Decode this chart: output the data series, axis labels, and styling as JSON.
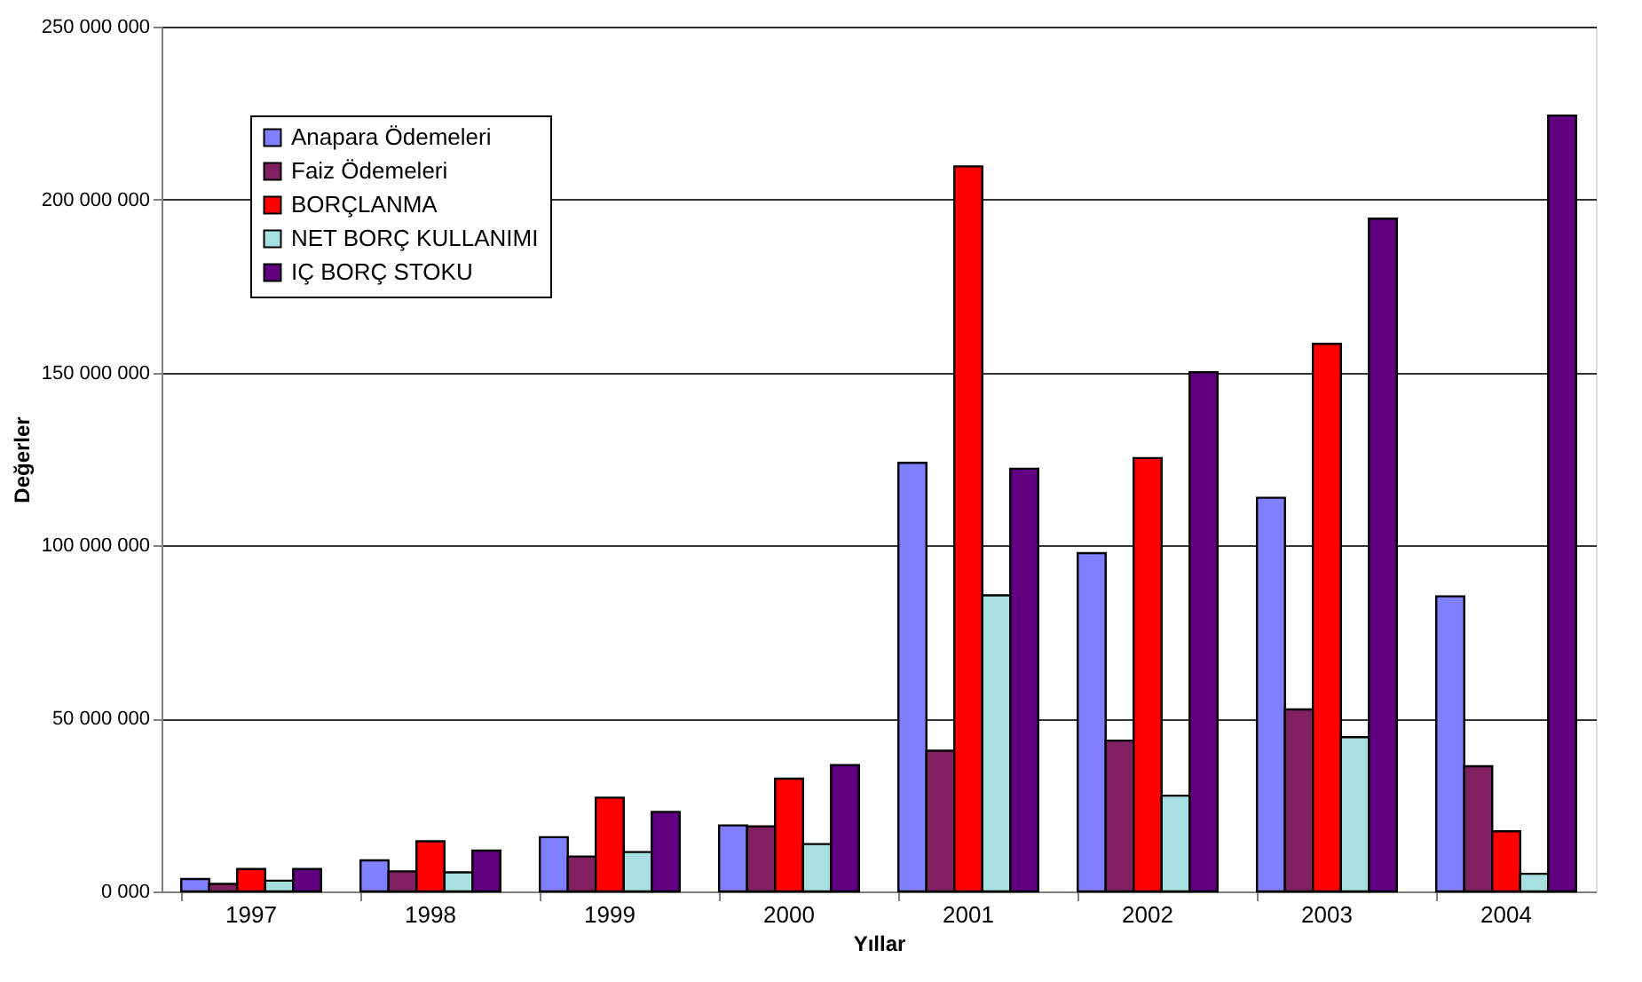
{
  "chart_data": {
    "type": "bar",
    "xlabel": "Yıllar",
    "ylabel": "Değerler",
    "categories": [
      "1997",
      "1998",
      "1999",
      "2000",
      "2001",
      "2002",
      "2003",
      "2004"
    ],
    "series": [
      {
        "name": "Anapara Ödemeleri",
        "color": "#8080ff",
        "values": [
          3600000,
          9000000,
          15700000,
          19100000,
          123900000,
          97800000,
          113800000,
          85300000
        ]
      },
      {
        "name": "Faiz Ödemeleri",
        "color": "#802060",
        "values": [
          2200000,
          5800000,
          10100000,
          18800000,
          40700000,
          43600000,
          52600000,
          36200000
        ]
      },
      {
        "name": "BORÇLANMA",
        "color": "#ff0000",
        "values": [
          6500000,
          14500000,
          27100000,
          32600000,
          209600000,
          125300000,
          158300000,
          17400000
        ]
      },
      {
        "name": "NET BORÇ KULLANIMI",
        "color": "#a6e0e0",
        "values": [
          3100000,
          5500000,
          11400000,
          13700000,
          85600000,
          27700000,
          44600000,
          5100000
        ]
      },
      {
        "name": "IÇ BORÇ STOKU",
        "color": "#600080",
        "values": [
          6500000,
          11800000,
          23000000,
          36500000,
          122200000,
          150100000,
          194500000,
          224300000
        ]
      }
    ],
    "ylim": [
      0,
      250000000
    ],
    "yticks": [
      {
        "value": 0,
        "label": "0 000"
      },
      {
        "value": 50000000,
        "label": "50 000 000"
      },
      {
        "value": 100000000,
        "label": "100 000 000"
      },
      {
        "value": 150000000,
        "label": "150 000 000"
      },
      {
        "value": 200000000,
        "label": "200 000 000"
      },
      {
        "value": 250000000,
        "label": "250 000 000"
      }
    ],
    "grid": "y",
    "legend": "top left"
  }
}
